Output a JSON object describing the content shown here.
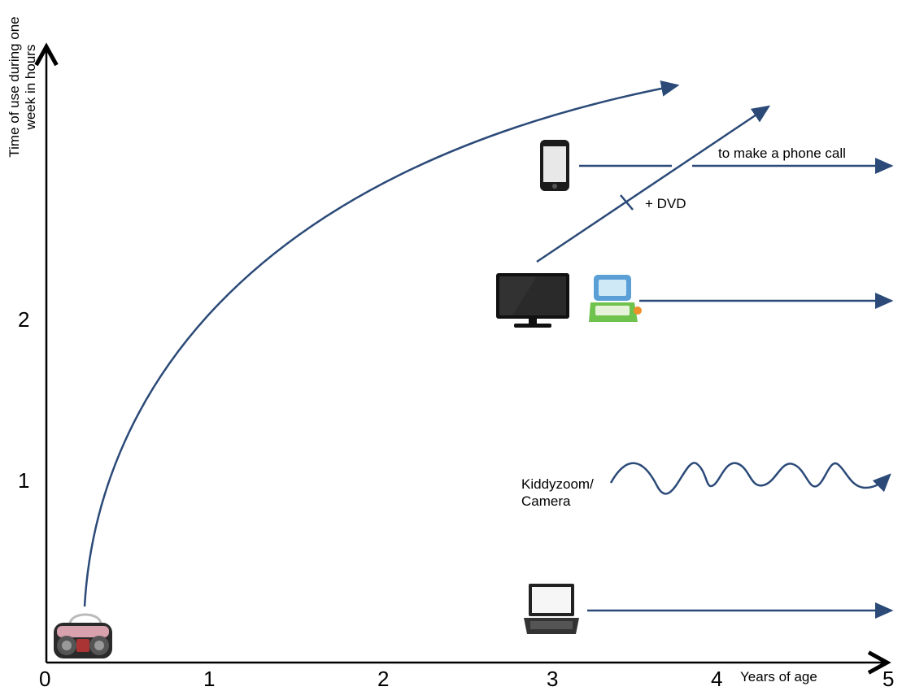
{
  "axes": {
    "y_label_line1": "Time of use during one",
    "y_label_line2": "week in hours",
    "x_label": "Years of age",
    "x_ticks": [
      "0",
      "1",
      "2",
      "3",
      "4",
      "5"
    ],
    "y_ticks": [
      "1",
      "2"
    ]
  },
  "annotations": {
    "phone_call": "to make a phone call",
    "dvd": "+ DVD",
    "kiddyzoom_line1": "Kiddyzoom/",
    "kiddyzoom_line2": "Camera"
  },
  "devices": [
    {
      "name": "radio",
      "icon": "boombox-icon"
    },
    {
      "name": "mobile phone",
      "icon": "smartphone-icon"
    },
    {
      "name": "television",
      "icon": "tv-icon"
    },
    {
      "name": "toy laptop",
      "icon": "kids-laptop-icon"
    },
    {
      "name": "laptop",
      "icon": "laptop-icon"
    }
  ],
  "colors": {
    "curve": "#2b4a78",
    "axis": "#000000"
  }
}
